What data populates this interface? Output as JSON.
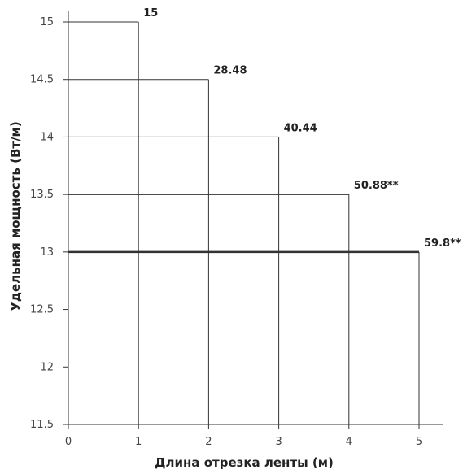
{
  "chart_data": {
    "type": "bar",
    "title": "",
    "xlabel": "Длина отрезка ленты (м)",
    "ylabel": "Удельная мощность (Вт/м)",
    "xlim": [
      0,
      5.3
    ],
    "ylim": [
      11.5,
      15.0
    ],
    "x_ticks": [
      0,
      1,
      2,
      3,
      4,
      5
    ],
    "y_ticks": [
      11.5,
      12,
      12.5,
      13,
      13.5,
      14,
      14.5,
      15
    ],
    "x_tick_labels": [
      "0",
      "1",
      "2",
      "3",
      "4",
      "5"
    ],
    "y_tick_labels": [
      "11.5",
      "12",
      "12.5",
      "13",
      "13.5",
      "14",
      "14.5",
      "15"
    ],
    "grid": false,
    "series": [
      {
        "length_m": 1,
        "power_w_per_m": 15.0,
        "label": "15",
        "line_width": 1
      },
      {
        "length_m": 2,
        "power_w_per_m": 14.5,
        "label": "28.48",
        "line_width": 1
      },
      {
        "length_m": 3,
        "power_w_per_m": 14.0,
        "label": "40.44",
        "line_width": 1
      },
      {
        "length_m": 4,
        "power_w_per_m": 13.5,
        "label": "50.88**",
        "line_width": 1.5
      },
      {
        "length_m": 5,
        "power_w_per_m": 13.0,
        "label": "59.8**",
        "line_width": 2.5
      }
    ],
    "note": "",
    "colors": {
      "bars": "#333333",
      "axis": "#333333",
      "text": "#222222"
    }
  }
}
